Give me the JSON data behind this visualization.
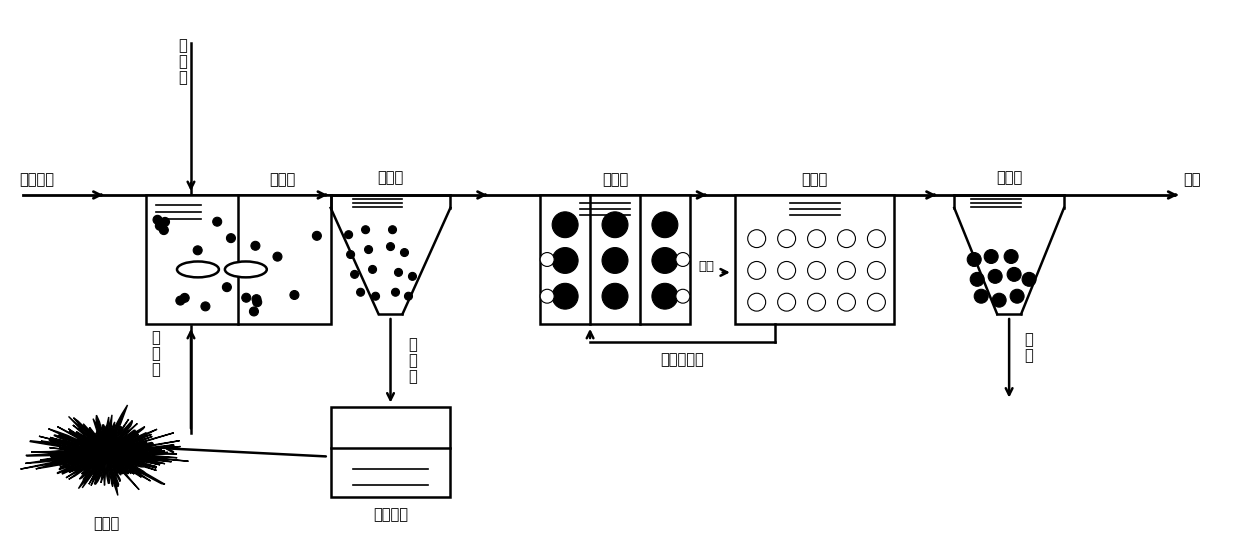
{
  "bg_color": "#ffffff",
  "lc": "#000000",
  "fig_w": 12.4,
  "fig_h": 5.37,
  "labels": {
    "active_carbon": "活\n性\n炭",
    "adsorption_tank": "吸附池",
    "sewage_in": "生活污水",
    "settling_tank": "沉淀池",
    "anoxic_tank": "缺氧池",
    "aerobic_tank": "好氧池",
    "secondary_tank": "二沉池",
    "water_out": "出水",
    "carbon_discharge": "炭\n排\n出",
    "hydrothermal": "水热碳化",
    "hydrothermal_carbon": "水热炭",
    "carbon_recycle": "炭\n回\n用",
    "nitrification_return": "硝化液回流",
    "aeration": "充氧",
    "sludge_discharge": "排\n泥"
  }
}
